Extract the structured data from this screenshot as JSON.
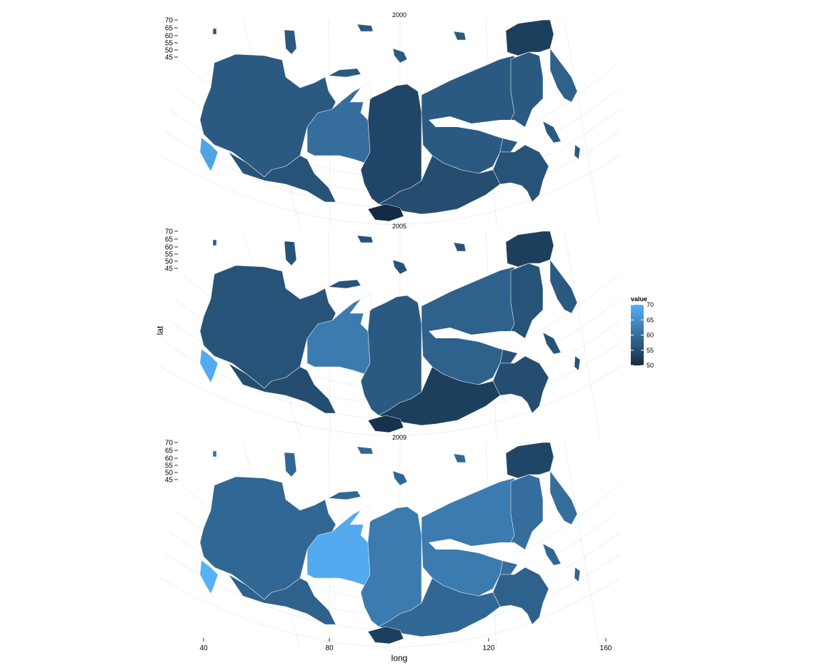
{
  "axes": {
    "xlabel": "long",
    "ylabel": "lat",
    "x_ticks": [
      "40",
      "80",
      "120",
      "160"
    ],
    "y_ticks": [
      "70",
      "65",
      "60",
      "55",
      "50",
      "45"
    ]
  },
  "legend": {
    "title": "value",
    "labels": [
      "70",
      "65",
      "60",
      "55",
      "50"
    ],
    "range": [
      50,
      70
    ],
    "color_low": "#132b43",
    "color_high": "#56b1f7",
    "placement": "right"
  },
  "panels": [
    {
      "title": "2000",
      "regions": {
        "west": 57,
        "belt": 56,
        "westsib": 60,
        "krasnoyarsk": 54,
        "sakha": 57,
        "chukotka": 53,
        "kamchatka": 58,
        "khabarovsk": 57,
        "siberia_s": 55,
        "tuva": 50,
        "fareast": 56,
        "caucasus": 68,
        "kaliningrad": 56
      }
    },
    {
      "title": "2005",
      "regions": {
        "west": 56,
        "belt": 55,
        "westsib": 62,
        "krasnoyarsk": 57,
        "sakha": 58,
        "chukotka": 53,
        "kamchatka": 57,
        "khabarovsk": 56,
        "siberia_s": 53,
        "tuva": 51,
        "fareast": 55,
        "caucasus": 69,
        "kaliningrad": 57
      }
    },
    {
      "title": "2009",
      "regions": {
        "west": 59,
        "belt": 58,
        "westsib": 69,
        "krasnoyarsk": 62,
        "sakha": 62,
        "chukotka": 54,
        "kamchatka": 60,
        "khabarovsk": 60,
        "siberia_s": 59,
        "tuva": 53,
        "fareast": 58,
        "caucasus": 70,
        "kaliningrad": 60
      }
    }
  ]
}
